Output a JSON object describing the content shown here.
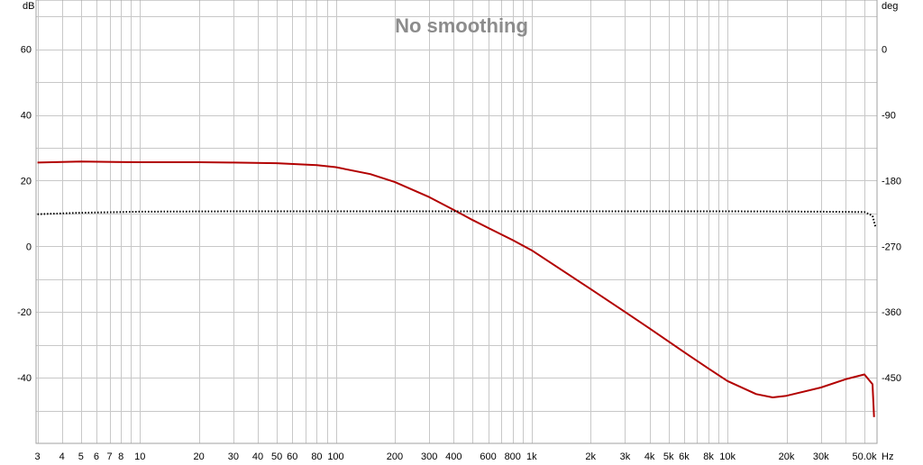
{
  "chart_data": {
    "type": "line",
    "title": "No smoothing",
    "x_scale": "log",
    "x_unit": "Hz",
    "y_left_unit": "dB",
    "y_right_unit": "deg",
    "xlim": [
      2.95,
      58000
    ],
    "ylim_left": [
      -60,
      75
    ],
    "ylim_right": [
      -540,
      67.5
    ],
    "grid": true,
    "colors": {
      "magnitude": "#b20000",
      "phase": "#000000",
      "grid": "#c8c8c8",
      "title": "#8c8c8c"
    },
    "x_ticks": [
      "3",
      "4",
      "5",
      "6",
      "7",
      "8",
      "10",
      "20",
      "30",
      "40",
      "50",
      "60",
      "80",
      "100",
      "200",
      "300",
      "400",
      "600",
      "800",
      "1k",
      "2k",
      "3k",
      "4k",
      "5k",
      "6k",
      "8k",
      "10k",
      "20k",
      "30k",
      "50.0k"
    ],
    "x_tick_values": [
      3,
      4,
      5,
      6,
      7,
      8,
      10,
      20,
      30,
      40,
      50,
      60,
      80,
      100,
      200,
      300,
      400,
      600,
      800,
      1000,
      2000,
      3000,
      4000,
      5000,
      6000,
      8000,
      10000,
      20000,
      30000,
      50000
    ],
    "y_left_ticks": [
      "60",
      "40",
      "20",
      "0",
      "-20",
      "-40"
    ],
    "y_left_tick_values": [
      60,
      40,
      20,
      0,
      -20,
      -40
    ],
    "y_right_ticks": [
      "0",
      "-90",
      "-180",
      "-270",
      "-360",
      "-450"
    ],
    "y_right_tick_values": [
      0,
      -90,
      -180,
      -270,
      -360,
      -450
    ],
    "series": [
      {
        "style": "solid",
        "axis": "left",
        "x": [
          3,
          5,
          10,
          20,
          30,
          50,
          80,
          100,
          150,
          200,
          300,
          400,
          500,
          600,
          800,
          1000,
          2000,
          3000,
          4000,
          6000,
          8000,
          10000,
          14000,
          17000,
          20000,
          30000,
          40000,
          50000,
          55000,
          56000
        ],
        "y": [
          25.5,
          25.8,
          25.6,
          25.6,
          25.5,
          25.3,
          24.7,
          24.1,
          22.0,
          19.6,
          15.0,
          11.1,
          8.0,
          5.6,
          1.9,
          -1.2,
          -13.0,
          -20.0,
          -25.0,
          -32.2,
          -37.2,
          -41.0,
          -45.0,
          -46.0,
          -45.5,
          -43.0,
          -40.5,
          -39.0,
          -42.0,
          -52.0
        ]
      },
      {
        "style": "dotted",
        "axis": "right",
        "x": [
          3,
          5,
          10,
          30,
          100,
          1000,
          10000,
          30000,
          50000,
          55000,
          57000
        ],
        "y": [
          -226,
          -224,
          -222.5,
          -222,
          -222,
          -222,
          -222,
          -222.5,
          -223,
          -228,
          -244
        ]
      }
    ]
  }
}
